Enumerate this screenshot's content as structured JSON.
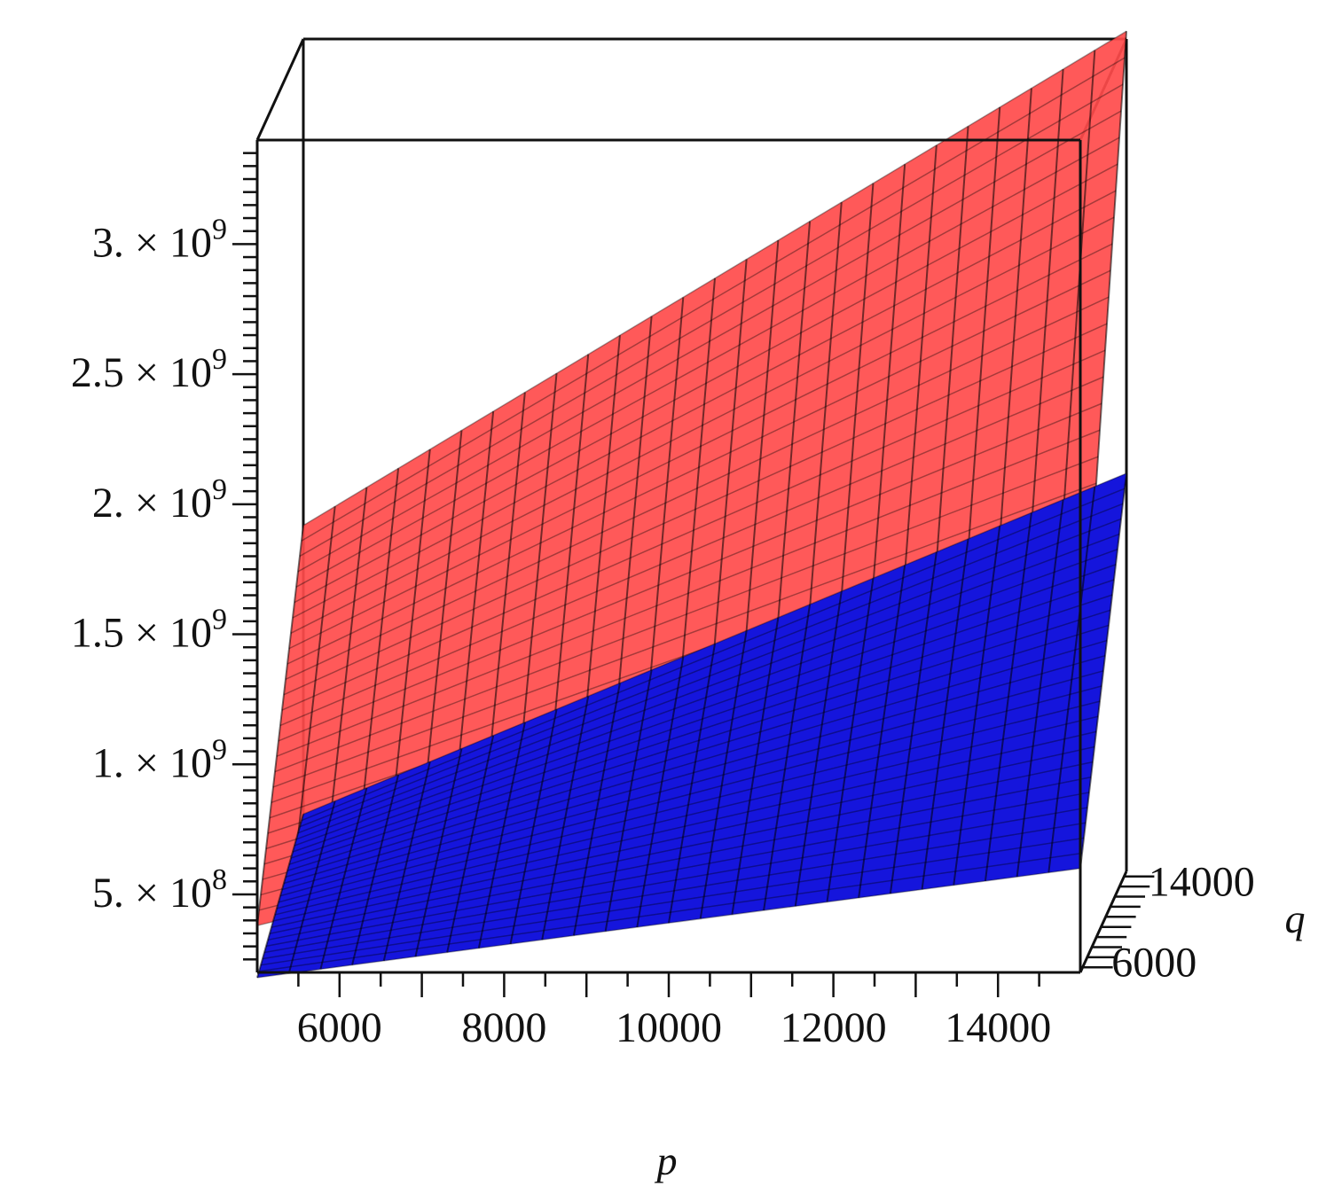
{
  "chart_data": {
    "type": "surface",
    "title": "",
    "xlabel": "p",
    "ylabel": "q",
    "zlabel": "",
    "x_ticks": [
      "6000",
      "8000",
      "10000",
      "12000",
      "14000"
    ],
    "y_ticks": [
      "6000",
      "14000"
    ],
    "z_ticks": [
      {
        "value": 500000000,
        "mant": "5.",
        "exp": "8"
      },
      {
        "value": 1000000000,
        "mant": "1.",
        "exp": "9"
      },
      {
        "value": 1500000000,
        "mant": "1.5",
        "exp": "9"
      },
      {
        "value": 2000000000,
        "mant": "2.",
        "exp": "9"
      },
      {
        "value": 2500000000,
        "mant": "2.5",
        "exp": "9"
      },
      {
        "value": 3000000000,
        "mant": "3.",
        "exp": "9"
      }
    ],
    "xlim": [
      5000,
      15000
    ],
    "ylim": [
      5000,
      15000
    ],
    "zlim": [
      200000000,
      3400000000
    ],
    "grid_lines": 26,
    "series": [
      {
        "color": "#ff4b4b",
        "corners": {
          "p_min_q_min": 380000000,
          "p_max_q_min": 1160000000,
          "p_min_q_max": 1530000000,
          "p_max_q_max": 3430000000
        }
      },
      {
        "color": "#1515dc",
        "corners": {
          "p_min_q_min": 180000000,
          "p_max_q_min": 600000000,
          "p_min_q_max": 420000000,
          "p_max_q_max": 1730000000
        }
      }
    ]
  }
}
